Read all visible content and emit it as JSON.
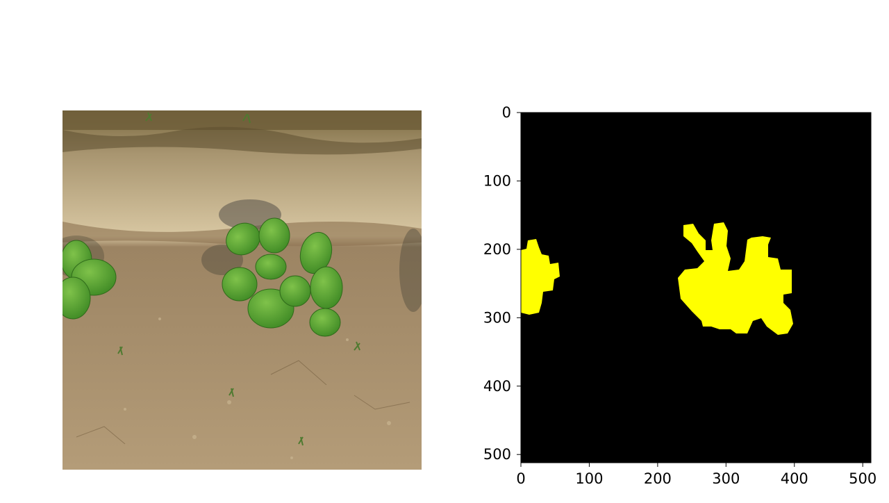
{
  "photo": {
    "subject": "soybean seedlings on dry soil, viewed from above"
  },
  "mask_plot": {
    "type": "heatmap",
    "x_ticks": [
      "0",
      "100",
      "200",
      "300",
      "400",
      "500"
    ],
    "y_ticks": [
      "0",
      "100",
      "200",
      "300",
      "400",
      "500"
    ],
    "xlim": [
      0,
      512
    ],
    "ylim": [
      512,
      0
    ],
    "colors": {
      "background": "#000000",
      "mask": "#ffff00"
    }
  }
}
